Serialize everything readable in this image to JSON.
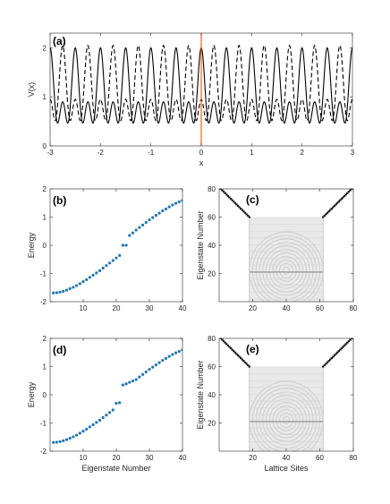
{
  "chart_data": [
    {
      "id": "a",
      "type": "line",
      "panel_label": "(a)",
      "xlabel": "x",
      "ylabel": "V(x)",
      "xlim": [
        -3,
        3
      ],
      "ylim": [
        0,
        2.3
      ],
      "xticks": [
        "-3",
        "-2",
        "-1",
        "0",
        "1",
        "2",
        "3"
      ],
      "yticks": [
        "0",
        "1",
        "2"
      ],
      "series": [
        {
          "style": "solid",
          "formula": "1.25 + 0.75*cos(2*pi*(x - 0.02)/0.5) with deeper minimum each period, period 0.5, max 2",
          "max": 2,
          "min": 0.3,
          "period": 0.5
        },
        {
          "style": "dashed",
          "max": 2,
          "min": 0.5,
          "period": 0.5,
          "phase": 0.25
        }
      ],
      "annotations": [
        {
          "type": "vertical_line",
          "x": 0,
          "color": "#e8632b"
        }
      ]
    },
    {
      "id": "b",
      "type": "scatter",
      "panel_label": "(b)",
      "xlabel": "",
      "ylabel": "Energy",
      "xlim": [
        0,
        40
      ],
      "ylim": [
        -2,
        2
      ],
      "xticks": [
        "10",
        "20",
        "30",
        "40"
      ],
      "yticks": [
        "-2",
        "-1",
        "0",
        "1",
        "2"
      ],
      "color": "#1f77b4",
      "x": [
        1,
        2,
        3,
        4,
        5,
        6,
        7,
        8,
        9,
        10,
        11,
        12,
        13,
        14,
        15,
        16,
        17,
        18,
        19,
        20,
        21,
        22,
        23,
        24,
        25,
        26,
        27,
        28,
        29,
        30,
        31,
        32,
        33,
        34,
        35,
        36,
        37,
        38,
        39,
        40
      ],
      "y": [
        -1.69,
        -1.68,
        -1.66,
        -1.63,
        -1.59,
        -1.54,
        -1.49,
        -1.43,
        -1.36,
        -1.29,
        -1.22,
        -1.14,
        -1.06,
        -0.98,
        -0.9,
        -0.81,
        -0.72,
        -0.63,
        -0.54,
        -0.45,
        -0.36,
        0.0,
        0.0,
        0.35,
        0.44,
        0.54,
        0.63,
        0.72,
        0.81,
        0.9,
        0.98,
        1.06,
        1.14,
        1.22,
        1.29,
        1.36,
        1.43,
        1.49,
        1.54,
        1.59
      ]
    },
    {
      "id": "c",
      "type": "heatmap",
      "panel_label": "(c)",
      "xlabel": "",
      "ylabel": "Eigenstate Number",
      "xlim": [
        0,
        80
      ],
      "ylim": [
        0,
        80
      ],
      "xticks": [
        "20",
        "40",
        "60",
        "80"
      ],
      "yticks": [
        "20",
        "40",
        "60",
        "80"
      ],
      "colormap": "grayscale"
    },
    {
      "id": "d",
      "type": "scatter",
      "panel_label": "(d)",
      "xlabel": "Eigenstate Number",
      "ylabel": "Energy",
      "xlim": [
        0,
        40
      ],
      "ylim": [
        -2,
        2
      ],
      "xticks": [
        "10",
        "20",
        "30",
        "40"
      ],
      "yticks": [
        "-2",
        "-1",
        "0",
        "1",
        "2"
      ],
      "color": "#1f77b4",
      "x": [
        1,
        2,
        3,
        4,
        5,
        6,
        7,
        8,
        9,
        10,
        11,
        12,
        13,
        14,
        15,
        16,
        17,
        18,
        19,
        20,
        21,
        22,
        23,
        24,
        25,
        26,
        27,
        28,
        29,
        30,
        31,
        32,
        33,
        34,
        35,
        36,
        37,
        38,
        39,
        40
      ],
      "y": [
        -1.69,
        -1.68,
        -1.66,
        -1.63,
        -1.59,
        -1.54,
        -1.49,
        -1.43,
        -1.36,
        -1.29,
        -1.22,
        -1.14,
        -1.06,
        -0.98,
        -0.9,
        -0.81,
        -0.72,
        -0.63,
        -0.54,
        -0.3,
        -0.28,
        0.35,
        0.39,
        0.44,
        0.49,
        0.54,
        0.63,
        0.72,
        0.81,
        0.9,
        0.98,
        1.06,
        1.14,
        1.22,
        1.29,
        1.36,
        1.43,
        1.49,
        1.54,
        1.59
      ]
    },
    {
      "id": "e",
      "type": "heatmap",
      "panel_label": "(e)",
      "xlabel": "Lattice Sites",
      "ylabel": "Eigenstate Number",
      "xlim": [
        0,
        80
      ],
      "ylim": [
        0,
        80
      ],
      "xticks": [
        "20",
        "40",
        "60",
        "80"
      ],
      "yticks": [
        "20",
        "40",
        "60",
        "80"
      ],
      "colormap": "grayscale"
    }
  ]
}
